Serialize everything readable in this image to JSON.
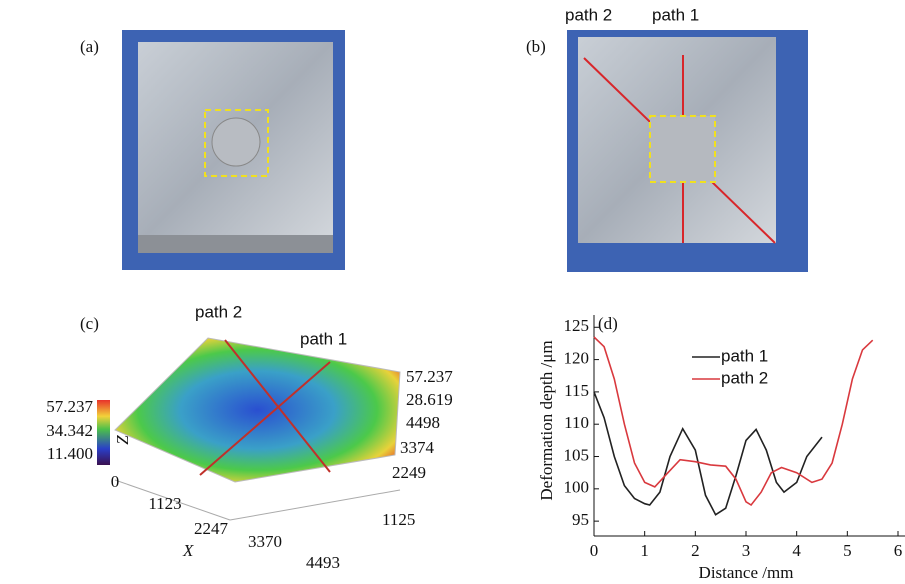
{
  "panels": {
    "a": {
      "label": "(a)"
    },
    "b": {
      "label": "(b)",
      "path_labels": [
        "path 2",
        "path 1"
      ]
    },
    "c": {
      "label": "(c)",
      "path_labels": [
        "path 2",
        "path 1"
      ],
      "colorbar_ticks": [
        57.237,
        34.342,
        {
          "value": 11.4,
          "label": "11.400"
        }
      ],
      "z_axis": {
        "label": "Z",
        "ticks": [
          57.237,
          28.619
        ]
      },
      "y_axis": {
        "ticks": [
          4498,
          3374,
          2249,
          1125
        ]
      },
      "x_axis": {
        "label": "X",
        "ticks": [
          0,
          1123,
          2247,
          3370,
          4493
        ]
      }
    }
  },
  "chart_data": {
    "type": "line",
    "panel_label": "(d)",
    "x_label": "Distance /mm",
    "y_label": "Deformation depth /μm",
    "xlim": [
      0,
      6
    ],
    "xticks": [
      0,
      1,
      2,
      3,
      4,
      5,
      6
    ],
    "ylim": [
      92.7,
      126.9
    ],
    "yticks": [
      95,
      100,
      105,
      110,
      115,
      120,
      125
    ],
    "series": [
      {
        "name": "path 1",
        "color": "#222222",
        "x": [
          0,
          0.2,
          0.4,
          0.6,
          0.8,
          1.0,
          1.1,
          1.3,
          1.5,
          1.75,
          2.0,
          2.2,
          2.4,
          2.6,
          2.8,
          3.0,
          3.2,
          3.4,
          3.6,
          3.75,
          4.0,
          4.2,
          4.5
        ],
        "values": [
          115,
          111,
          105,
          100.5,
          98.5,
          97.7,
          97.5,
          99.5,
          105,
          109.3,
          106,
          99,
          96,
          97,
          102,
          107.5,
          109.2,
          106,
          101,
          99.5,
          101,
          105,
          108
        ]
      },
      {
        "name": "path 2",
        "color": "#d9393e",
        "x": [
          0,
          0.2,
          0.4,
          0.6,
          0.8,
          1.0,
          1.2,
          1.4,
          1.7,
          2.0,
          2.3,
          2.6,
          2.8,
          3.0,
          3.1,
          3.3,
          3.5,
          3.7,
          4.0,
          4.3,
          4.5,
          4.7,
          4.9,
          5.1,
          5.3,
          5.5
        ],
        "values": [
          123.5,
          122,
          117,
          110,
          104,
          101,
          100.3,
          102,
          104.5,
          104.2,
          103.7,
          103.5,
          101.5,
          98,
          97.5,
          99.5,
          102.5,
          103.3,
          102.5,
          101,
          101.5,
          104,
          110,
          117,
          121.5,
          123
        ]
      }
    ]
  }
}
